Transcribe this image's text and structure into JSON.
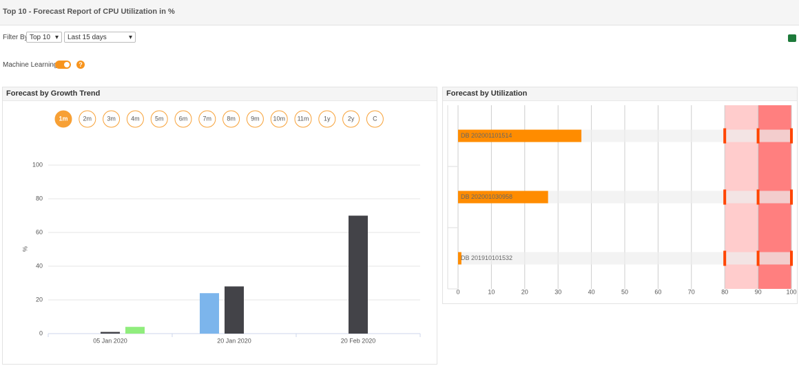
{
  "header": {
    "title": "Top 10 - Forecast Report of CPU Utilization in %"
  },
  "filter": {
    "label": "Filter By",
    "count": "Top 10",
    "period": "Last 15 days"
  },
  "machine_learning": {
    "label": "Machine Learning",
    "help": "?"
  },
  "chart_data": [
    {
      "type": "bar",
      "title": "Forecast by Growth Trend",
      "periods": [
        "1m",
        "2m",
        "3m",
        "4m",
        "5m",
        "6m",
        "7m",
        "8m",
        "9m",
        "10m",
        "11m",
        "1y",
        "2y",
        "C"
      ],
      "categories": [
        "05 Jan 2020",
        "20 Jan 2020",
        "20 Feb 2020"
      ],
      "series": [
        {
          "color": "#7cb5ec",
          "values": [
            null,
            24,
            null
          ]
        },
        {
          "color": "#434348",
          "values": [
            1,
            28,
            70
          ]
        },
        {
          "color": "#90ed7d",
          "values": [
            4,
            null,
            null
          ]
        }
      ],
      "ylabel": "%",
      "ylim": [
        0,
        100
      ],
      "yticks": [
        0,
        20,
        40,
        60,
        80,
        100
      ],
      "grid": true
    },
    {
      "type": "hbar",
      "title": "Forecast by Utilization",
      "categories": [
        "DB 202001101514",
        "DB 202001030958",
        "DB 201910101532"
      ],
      "values": [
        37,
        27,
        1
      ],
      "color": "#ff8c00",
      "xlim": [
        0,
        100
      ],
      "xticks": [
        0,
        10,
        20,
        30,
        40,
        50,
        60,
        70,
        80,
        90,
        100
      ],
      "grid": true,
      "plot_bands": [
        {
          "from": 80,
          "to": 90,
          "color": "#ffcccc"
        },
        {
          "from": 90,
          "to": 100,
          "color": "#ff7f7f"
        }
      ]
    }
  ]
}
